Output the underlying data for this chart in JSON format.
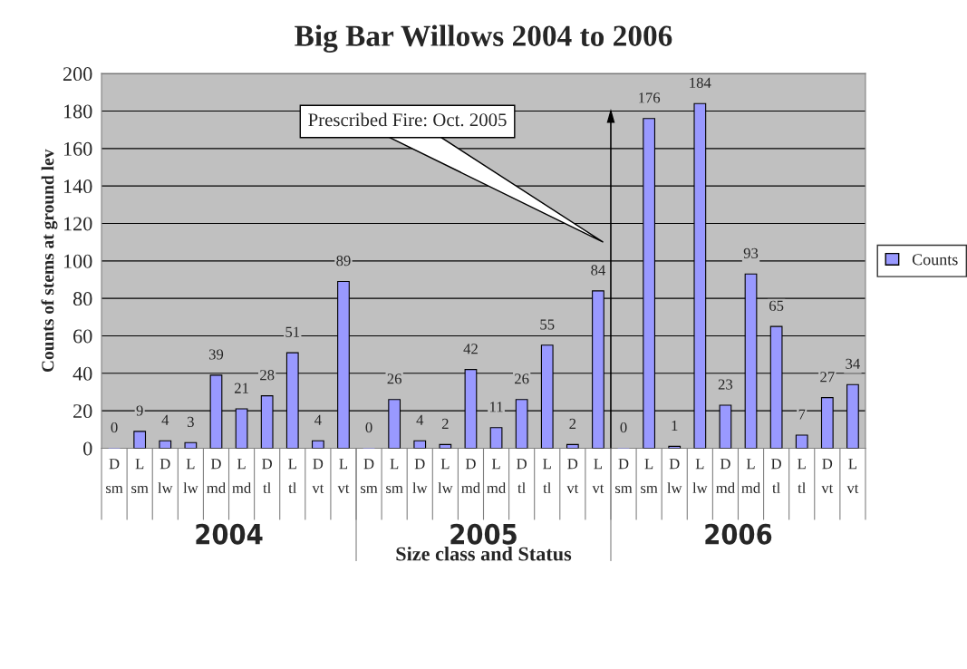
{
  "chart_data": {
    "type": "bar",
    "title": "Big Bar Willows 2004 to 2006",
    "xlabel": "Size class and Status",
    "ylabel": "Counts of stems at ground lev",
    "categories": [
      "D\nsm",
      "L\nsm",
      "D\nlw",
      "L\nlw",
      "D\nmd",
      "L\nmd",
      "D\ntl",
      "L\ntl",
      "D\nvt",
      "L\nvt",
      "D\nsm",
      "L\nsm",
      "D\nlw",
      "L\nlw",
      "D\nmd",
      "L\nmd",
      "D\ntl",
      "L\ntl",
      "D\nvt",
      "L\nvt",
      "D\nsm",
      "L\nsm",
      "D\nlw",
      "L\nlw",
      "D\nmd",
      "L\nmd",
      "D\ntl",
      "L\ntl",
      "D\nvt",
      "L\nvt"
    ],
    "series": [
      {
        "name": "Counts",
        "color": "#9999ff",
        "values": [
          0,
          9,
          4,
          3,
          39,
          21,
          28,
          51,
          4,
          89,
          0,
          26,
          4,
          2,
          42,
          11,
          26,
          55,
          2,
          84,
          0,
          176,
          1,
          184,
          23,
          93,
          65,
          7,
          27,
          34
        ]
      }
    ],
    "ylim": [
      0,
      200
    ],
    "yticks": [
      0,
      20,
      40,
      60,
      80,
      100,
      120,
      140,
      160,
      180,
      200
    ],
    "grid": "y",
    "legend": "right",
    "data_labels": true,
    "annotations": [
      "2004",
      "2005",
      "2006",
      "Prescribed Fire: Oct. 2005"
    ]
  }
}
